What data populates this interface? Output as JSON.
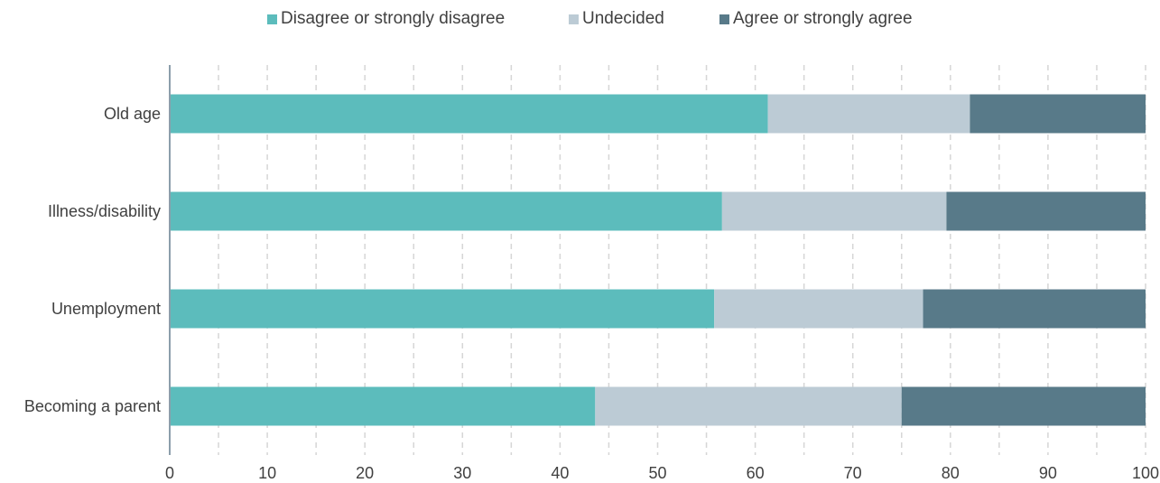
{
  "chart_data": {
    "type": "bar",
    "orientation": "horizontal",
    "stacked": true,
    "title": "",
    "xlabel": "",
    "ylabel": "",
    "categories": [
      "Old age",
      "Illness/disability",
      "Unemployment",
      "Becoming a parent"
    ],
    "series": [
      {
        "name": "Disagree or strongly disagree",
        "color": "#5cbcbc",
        "values": [
          61.3,
          56.6,
          55.8,
          43.6
        ]
      },
      {
        "name": "Undecided",
        "color": "#bccbd5",
        "values": [
          20.7,
          23.0,
          21.4,
          31.4
        ]
      },
      {
        "name": "Agree or strongly agree",
        "color": "#587a89",
        "values": [
          18.0,
          20.4,
          22.8,
          25.0
        ]
      }
    ],
    "xlim": [
      0,
      100
    ],
    "xticks": [
      "0",
      "10",
      "20",
      "30",
      "40",
      "50",
      "60",
      "70",
      "80",
      "90",
      "100"
    ],
    "grid": "vertical dashed at every 5",
    "legend_position": "top"
  }
}
